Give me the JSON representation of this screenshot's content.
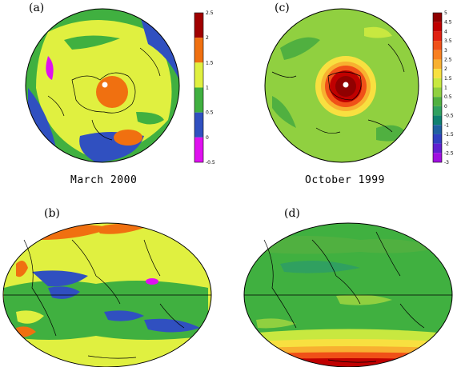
{
  "panels": {
    "a": {
      "label": "(a)",
      "caption": "March 2000"
    },
    "b": {
      "label": "(b)"
    },
    "c": {
      "label": "(c)",
      "caption": "October 1999"
    },
    "d": {
      "label": "(d)"
    }
  },
  "colorbar_a": {
    "ticks": [
      "2.5",
      "2",
      "1.5",
      "1",
      "0.5",
      "0",
      "-0.5"
    ],
    "colors": [
      "#a00000",
      "#f07010",
      "#e0f040",
      "#40b040",
      "#3050c0",
      "#e010f0"
    ]
  },
  "colorbar_c": {
    "ticks": [
      "5",
      "4.5",
      "4",
      "3.5",
      "3",
      "2.5",
      "2",
      "1.5",
      "1",
      "0.5",
      "0",
      "-0.5",
      "-1",
      "-1.5",
      "-2",
      "-2.5",
      "-3"
    ],
    "colors": [
      "#900000",
      "#c00000",
      "#e02010",
      "#f05018",
      "#f88020",
      "#f8b030",
      "#f8e040",
      "#c8e840",
      "#90d040",
      "#50b040",
      "#30a060",
      "#108070",
      "#2060a0",
      "#3040c0",
      "#6020d0",
      "#a010e0"
    ]
  }
}
